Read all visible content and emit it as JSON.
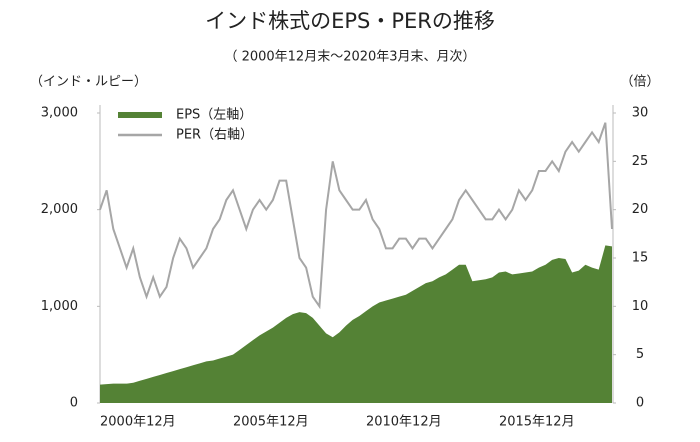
{
  "chart_data": {
    "type": "area-line",
    "title": "インド株式のEPS・PERの推移",
    "subtitle": "（ 2000年12月末～2020年3月末、月次）",
    "y_label": "（インド・ルピー）",
    "y2_label": "（倍）",
    "categories": [
      "2000年12月",
      null,
      null,
      null,
      null,
      null,
      null,
      null,
      null,
      null,
      null,
      null,
      null,
      null,
      null,
      null,
      null,
      null,
      null,
      null,
      "2005年12月",
      null,
      null,
      null,
      null,
      null,
      null,
      null,
      null,
      null,
      null,
      null,
      null,
      null,
      null,
      null,
      null,
      null,
      null,
      null,
      "2010年12月",
      null,
      null,
      null,
      null,
      null,
      null,
      null,
      null,
      null,
      null,
      null,
      null,
      null,
      null,
      null,
      null,
      null,
      null,
      null,
      "2015年12月",
      null,
      null,
      null,
      null,
      null,
      null,
      null,
      null,
      null,
      null,
      null,
      null,
      null,
      null,
      null,
      null,
      null
    ],
    "series": [
      {
        "name": "EPS（左軸）",
        "type": "area",
        "color": "#548235",
        "values": [
          190,
          195,
          200,
          200,
          200,
          210,
          230,
          250,
          270,
          290,
          310,
          330,
          350,
          370,
          390,
          410,
          430,
          440,
          460,
          480,
          500,
          550,
          600,
          650,
          700,
          740,
          780,
          830,
          880,
          920,
          940,
          930,
          880,
          800,
          720,
          680,
          730,
          800,
          860,
          900,
          950,
          1000,
          1040,
          1060,
          1080,
          1100,
          1120,
          1160,
          1200,
          1240,
          1260,
          1300,
          1330,
          1380,
          1430,
          1430,
          1260,
          1270,
          1280,
          1300,
          1350,
          1360,
          1330,
          1340,
          1350,
          1360,
          1400,
          1430,
          1480,
          1500,
          1490,
          1350,
          1370,
          1430,
          1400,
          1380,
          1630,
          1620
        ]
      },
      {
        "name": "PER（右軸）",
        "type": "line",
        "axis": "y2",
        "color": "#a6a6a6",
        "values": [
          20,
          22,
          18,
          16,
          14,
          16,
          13,
          11,
          13,
          11,
          12,
          15,
          17,
          16,
          14,
          15,
          16,
          18,
          19,
          21,
          22,
          20,
          18,
          20,
          21,
          20,
          21,
          23,
          23,
          19,
          15,
          14,
          11,
          10,
          20,
          25,
          22,
          21,
          20,
          20,
          21,
          19,
          18,
          16,
          16,
          17,
          17,
          16,
          17,
          17,
          16,
          17,
          18,
          19,
          21,
          22,
          21,
          20,
          19,
          19,
          20,
          19,
          20,
          22,
          21,
          22,
          24,
          24,
          25,
          24,
          26,
          27,
          26,
          27,
          28,
          27,
          29,
          18
        ]
      }
    ],
    "ylim": [
      0,
      3000
    ],
    "yticks": [
      0,
      {
        "value": 1000,
        "label": "1,000"
      },
      {
        "value": 2000,
        "label": "2,000"
      },
      {
        "value": 3000,
        "label": "3,000"
      }
    ],
    "y2lim": [
      0,
      30
    ],
    "y2ticks": [
      0,
      5,
      10,
      15,
      20,
      25,
      30
    ],
    "legend": "top-left"
  }
}
